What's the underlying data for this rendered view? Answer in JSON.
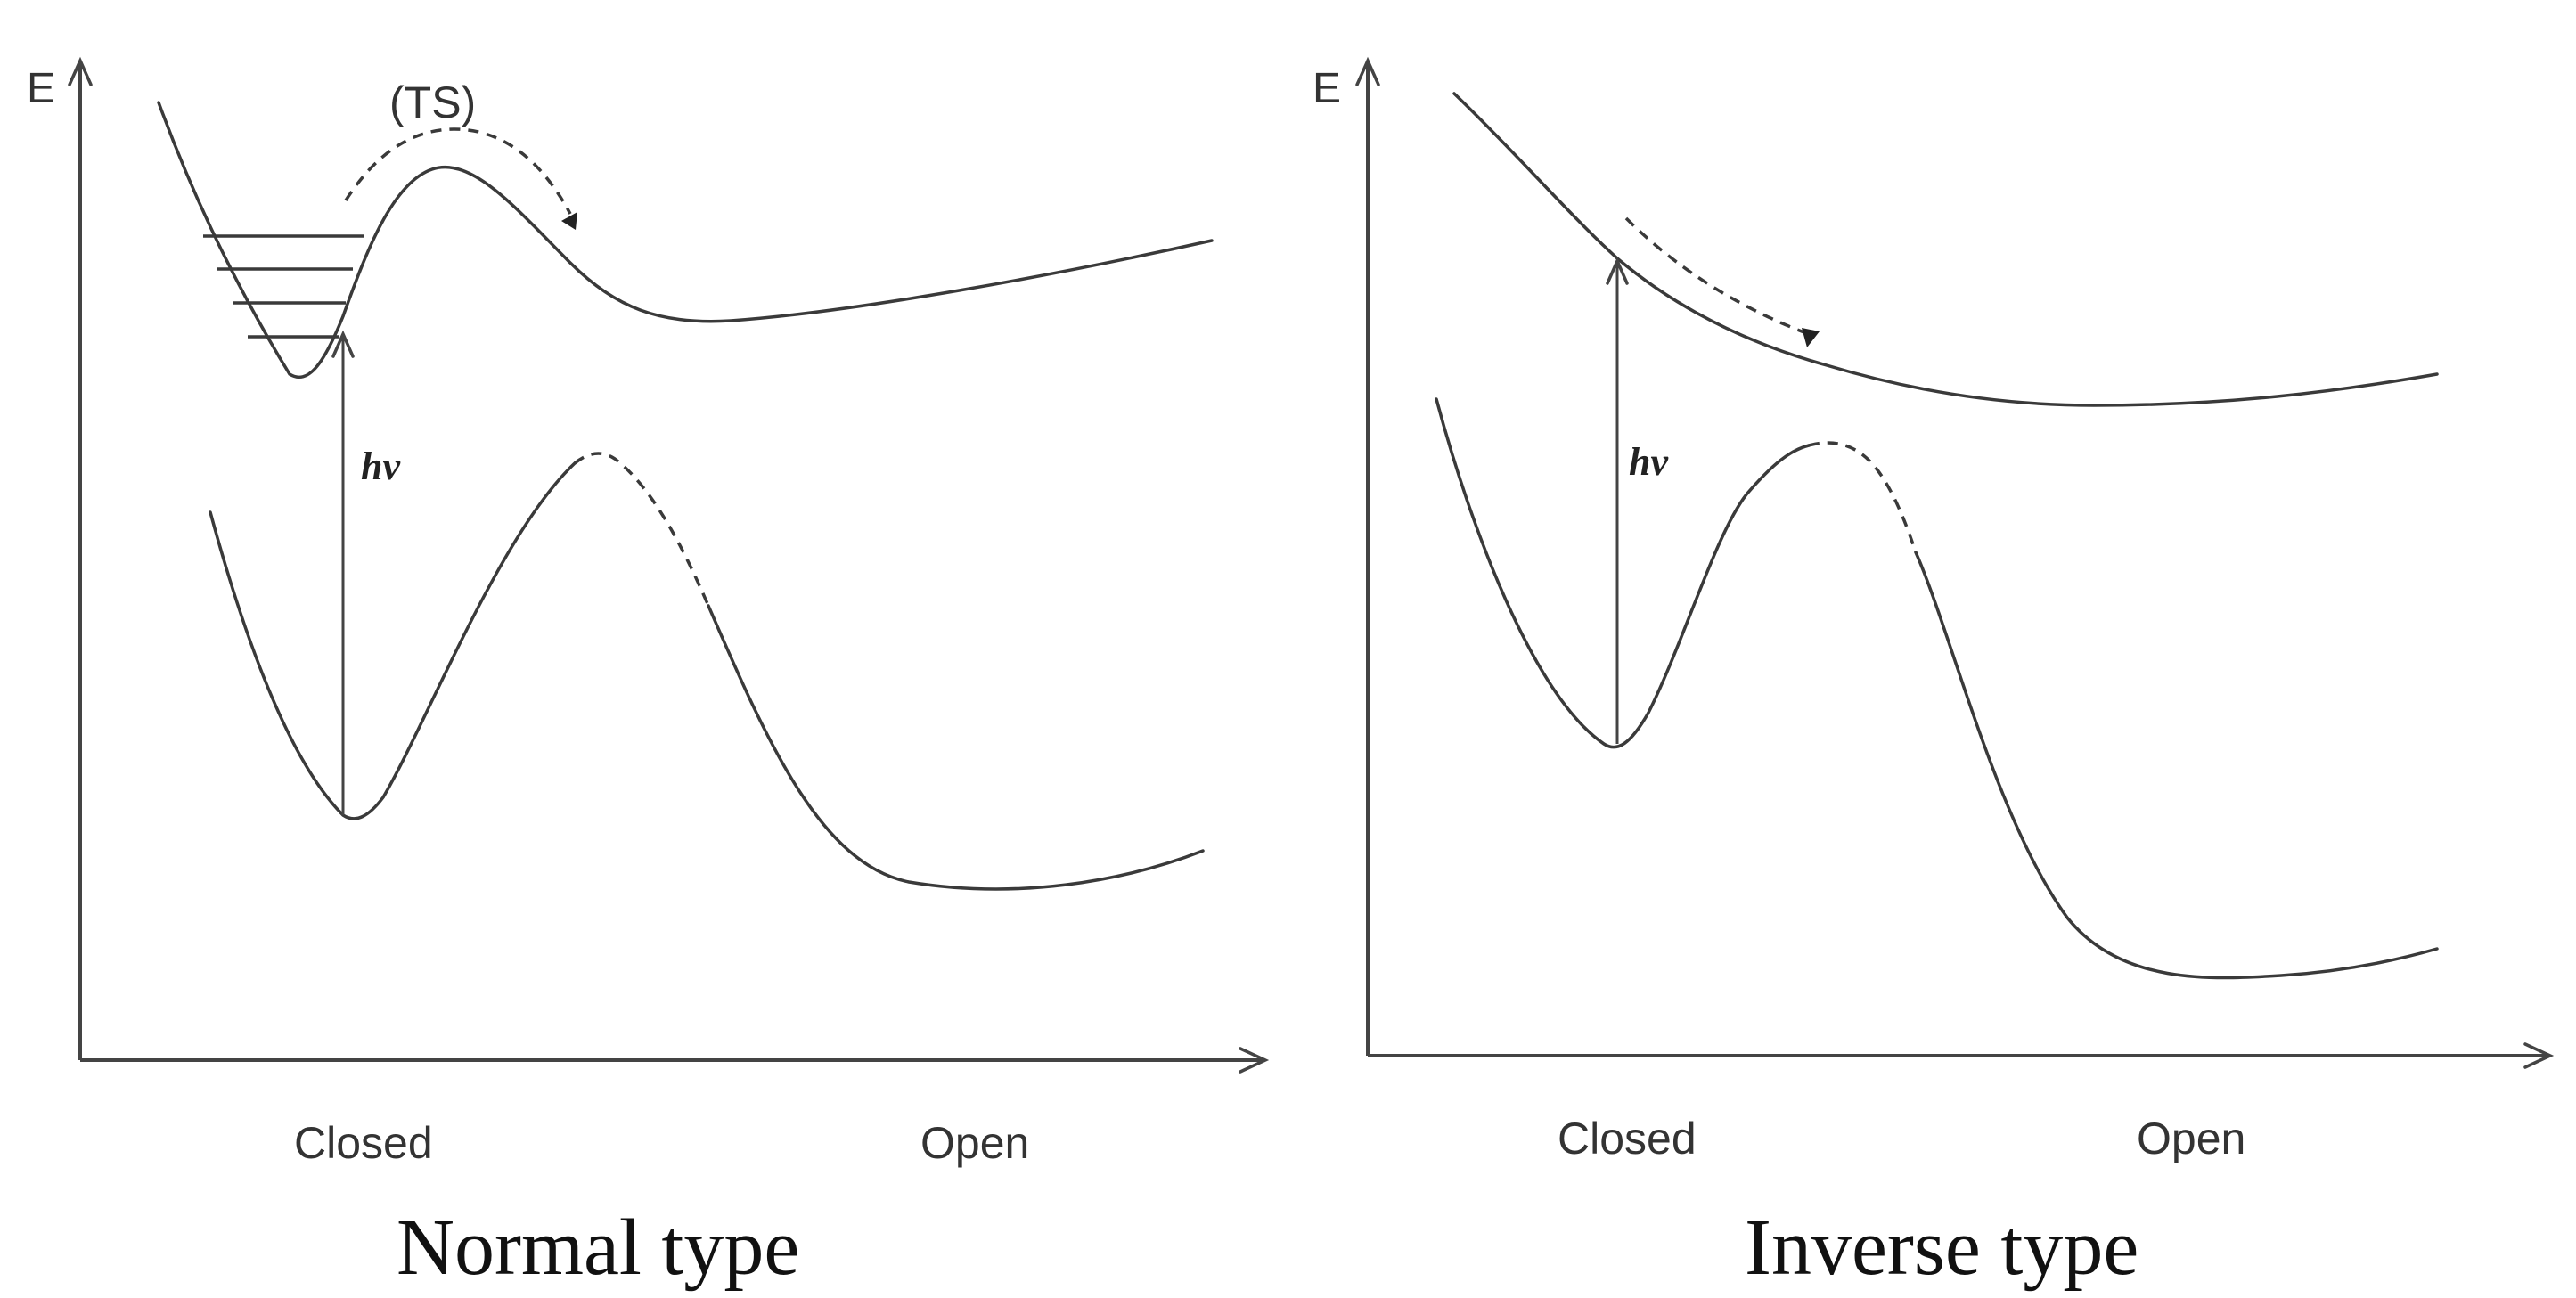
{
  "panels": [
    {
      "id": "normal",
      "y_axis_label": "E",
      "ts_label": "(TS)",
      "photon_label": "hν",
      "x_label_closed": "Closed",
      "x_label_open": "Open",
      "caption": "Normal type"
    },
    {
      "id": "inverse",
      "y_axis_label": "E",
      "photon_label": "hν",
      "x_label_closed": "Closed",
      "x_label_open": "Open",
      "caption": "Inverse type"
    }
  ]
}
